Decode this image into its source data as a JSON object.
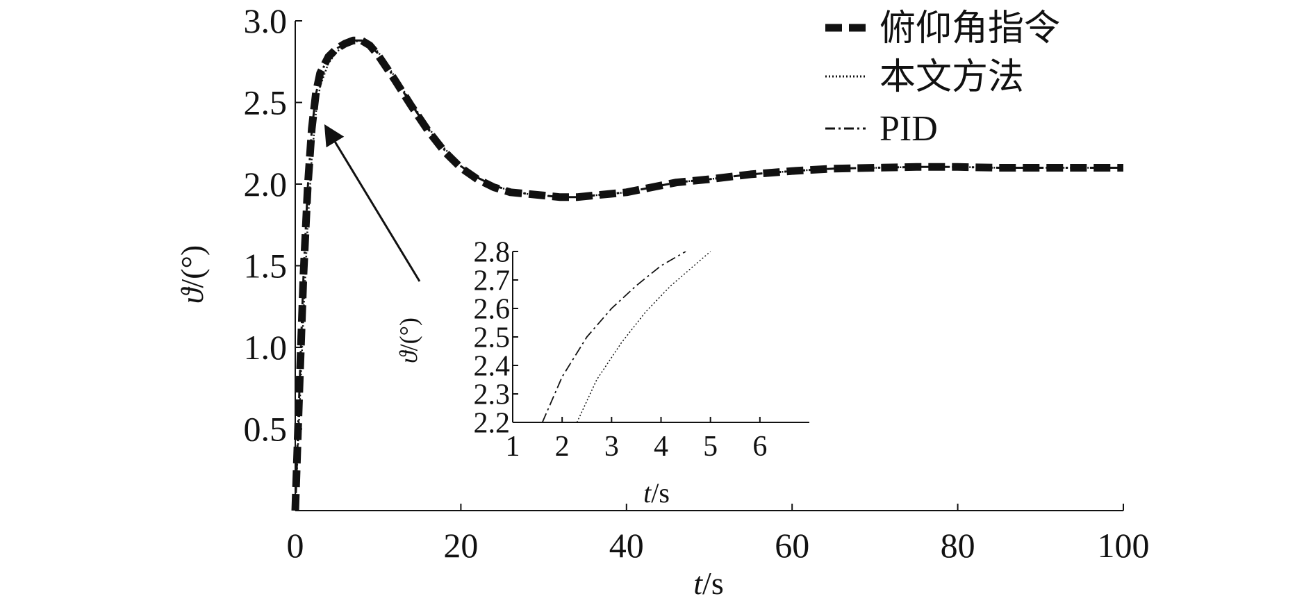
{
  "chart_data": [
    {
      "type": "line",
      "title": "",
      "xlabel_italic": "t",
      "xlabel_unit": "/s",
      "ylabel_symbol": "ϑ",
      "ylabel_unit": "/(°)",
      "xlim": [
        0,
        100
      ],
      "ylim": [
        0,
        3.0
      ],
      "xticks": [
        0,
        20,
        40,
        60,
        80,
        100
      ],
      "xtick_labels": [
        "0",
        "20",
        "40",
        "60",
        "80",
        "100"
      ],
      "yticks": [
        0.5,
        1.0,
        1.5,
        2.0,
        2.5,
        3.0
      ],
      "ytick_labels": [
        "0.5",
        "1.0",
        "1.5",
        "2.0",
        "2.5",
        "3.0"
      ],
      "grid": false,
      "legend": "top-right",
      "series": [
        {
          "name": "俯仰角指令",
          "style": "thick-dashed",
          "x": [
            0,
            0.5,
            1,
            1.5,
            2,
            2.5,
            3,
            4,
            5,
            6,
            7,
            8,
            9,
            10,
            12,
            14,
            16,
            18,
            20,
            22,
            24,
            26,
            28,
            30,
            32,
            34,
            36,
            38,
            40,
            42,
            44,
            46,
            48,
            50,
            55,
            60,
            65,
            70,
            75,
            80,
            85,
            90,
            95,
            100
          ],
          "y": [
            0,
            0.75,
            1.45,
            1.98,
            2.34,
            2.56,
            2.68,
            2.78,
            2.83,
            2.86,
            2.88,
            2.88,
            2.85,
            2.79,
            2.64,
            2.48,
            2.33,
            2.2,
            2.1,
            2.03,
            1.98,
            1.95,
            1.94,
            1.93,
            1.92,
            1.92,
            1.93,
            1.94,
            1.95,
            1.97,
            1.99,
            2.01,
            2.02,
            2.03,
            2.06,
            2.08,
            2.095,
            2.1,
            2.105,
            2.105,
            2.1,
            2.1,
            2.1,
            2.1
          ]
        },
        {
          "name": "本文方法",
          "style": "dotted",
          "x": [
            0,
            0.5,
            1,
            1.5,
            2,
            2.5,
            3,
            4,
            5,
            6,
            7,
            8,
            9,
            10,
            12,
            14,
            16,
            18,
            20,
            22,
            24,
            26,
            28,
            30,
            32,
            34,
            36,
            38,
            40,
            42,
            44,
            46,
            48,
            50,
            55,
            60,
            65,
            70,
            75,
            80,
            85,
            90,
            95,
            100
          ],
          "y": [
            0,
            0.6,
            1.2,
            1.75,
            2.16,
            2.44,
            2.6,
            2.74,
            2.81,
            2.85,
            2.87,
            2.88,
            2.86,
            2.81,
            2.66,
            2.5,
            2.35,
            2.22,
            2.11,
            2.04,
            1.99,
            1.96,
            1.94,
            1.93,
            1.92,
            1.92,
            1.93,
            1.94,
            1.95,
            1.97,
            1.99,
            2.01,
            2.02,
            2.03,
            2.06,
            2.08,
            2.095,
            2.1,
            2.105,
            2.105,
            2.1,
            2.1,
            2.1,
            2.1
          ]
        },
        {
          "name": "PID",
          "style": "dash-dot",
          "x": [
            0,
            0.5,
            1,
            1.5,
            2,
            2.5,
            3,
            4,
            5,
            6,
            7,
            8,
            9,
            10,
            12,
            14,
            16,
            18,
            20,
            22,
            24,
            26,
            28,
            30,
            32,
            34,
            36,
            38,
            40,
            42,
            44,
            46,
            48,
            50,
            55,
            60,
            65,
            70,
            75,
            80,
            85,
            90,
            95,
            100
          ],
          "y": [
            0,
            0.74,
            1.44,
            1.97,
            2.33,
            2.55,
            2.67,
            2.78,
            2.83,
            2.86,
            2.88,
            2.88,
            2.85,
            2.8,
            2.65,
            2.49,
            2.34,
            2.21,
            2.11,
            2.04,
            1.99,
            1.96,
            1.94,
            1.93,
            1.92,
            1.92,
            1.93,
            1.94,
            1.95,
            1.97,
            1.99,
            2.01,
            2.02,
            2.03,
            2.06,
            2.08,
            2.095,
            2.1,
            2.105,
            2.105,
            2.1,
            2.1,
            2.1,
            2.1
          ]
        }
      ]
    },
    {
      "type": "line",
      "role": "inset",
      "xlabel_italic": "t",
      "xlabel_unit": "/s",
      "ylabel_symbol": "ϑ",
      "ylabel_unit": "/(°)",
      "xlim": [
        1,
        7
      ],
      "ylim": [
        2.2,
        2.8
      ],
      "xticks": [
        1,
        2,
        3,
        4,
        5,
        6
      ],
      "xtick_labels": [
        "1",
        "2",
        "3",
        "4",
        "5",
        "6"
      ],
      "yticks": [
        2.2,
        2.3,
        2.4,
        2.5,
        2.6,
        2.7,
        2.8
      ],
      "ytick_labels": [
        "2.2",
        "2.3",
        "2.4",
        "2.5",
        "2.6",
        "2.7",
        "2.8"
      ],
      "grid": false,
      "series": [
        {
          "name": "PID",
          "style": "dash-dot",
          "x": [
            1.6,
            2.0,
            2.5,
            3.0,
            3.5,
            4.0,
            4.5
          ],
          "y": [
            2.2,
            2.36,
            2.5,
            2.6,
            2.68,
            2.75,
            2.8
          ]
        },
        {
          "name": "本文方法",
          "style": "dotted",
          "x": [
            2.3,
            2.7,
            3.2,
            3.7,
            4.2,
            4.6,
            5.0
          ],
          "y": [
            2.2,
            2.35,
            2.48,
            2.59,
            2.68,
            2.74,
            2.8
          ]
        }
      ]
    }
  ],
  "legend": {
    "items": [
      {
        "label": "俯仰角指令",
        "style": "thick-dashed"
      },
      {
        "label": "本文方法",
        "style": "dotted"
      },
      {
        "label": "PID",
        "style": "dash-dot"
      }
    ]
  },
  "arrow": {
    "from_target": "inset",
    "to_data": {
      "x": 4.5,
      "y": 2.32
    }
  }
}
